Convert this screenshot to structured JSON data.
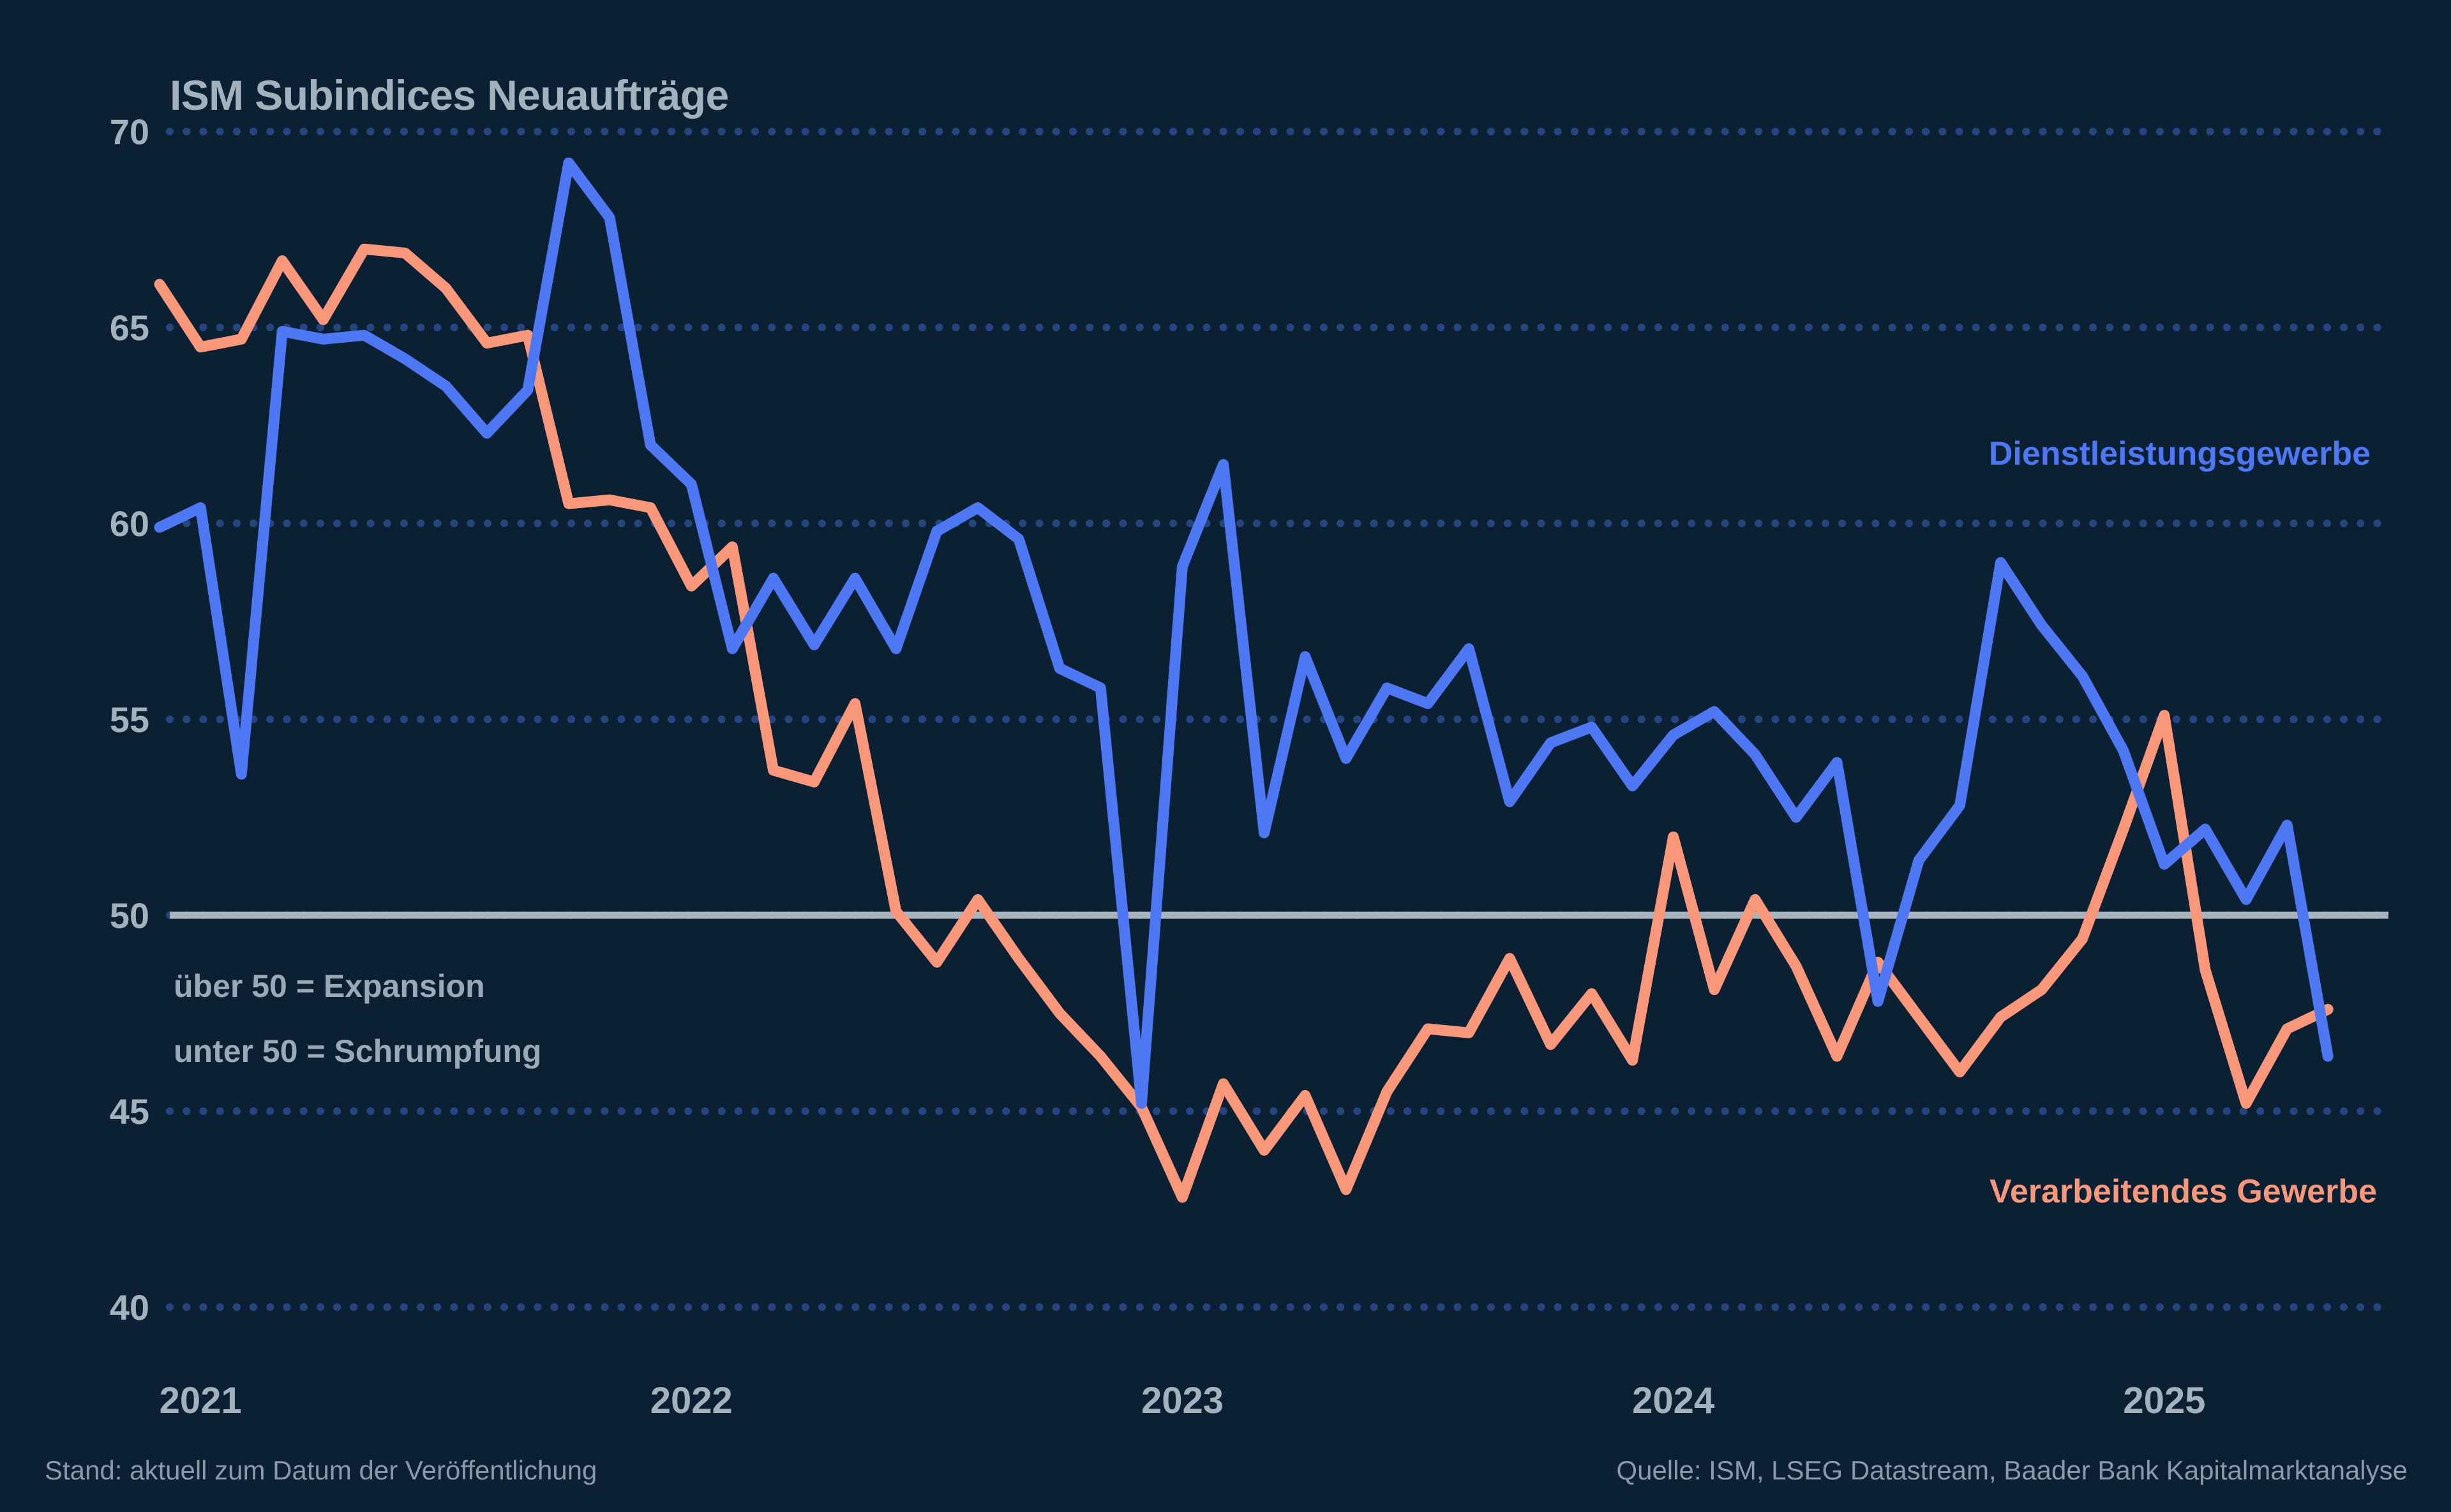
{
  "page": {
    "background": "#0b2033"
  },
  "chart_data": {
    "type": "line",
    "title": "ISM Subindices Neuaufträge",
    "x_interval": "monthly",
    "x_start": "2020-12",
    "x_end": "2025-05",
    "ylim": [
      40,
      70
    ],
    "yticks": [
      70,
      65,
      60,
      55,
      50,
      45,
      40
    ],
    "xticks": [
      {
        "label": "2021",
        "month_index": 1
      },
      {
        "label": "2022",
        "month_index": 13
      },
      {
        "label": "2023",
        "month_index": 25
      },
      {
        "label": "2024",
        "month_index": 37
      },
      {
        "label": "2025",
        "month_index": 49
      }
    ],
    "grid": {
      "style": "dotted",
      "orientation": "horizontal",
      "color": "#24457f"
    },
    "reference_line": {
      "value": 50,
      "color": "#a9b3bd"
    },
    "annotations": [
      "über 50 = Expansion",
      "unter 50 = Schrumpfung"
    ],
    "legend_position": "inline-right",
    "series": [
      {
        "name": "Dienstleistungsgewerbe",
        "color": "#4e77f4",
        "values": [
          59.9,
          60.4,
          53.6,
          64.9,
          64.7,
          64.8,
          64.2,
          63.5,
          62.3,
          63.4,
          69.2,
          67.8,
          62.0,
          61.0,
          56.8,
          58.6,
          56.9,
          58.6,
          56.8,
          59.8,
          60.4,
          59.6,
          56.3,
          55.8,
          45.2,
          58.9,
          61.5,
          52.1,
          56.6,
          54.0,
          55.8,
          55.4,
          56.8,
          52.9,
          54.4,
          54.8,
          53.3,
          54.6,
          55.2,
          54.1,
          52.5,
          53.9,
          47.8,
          51.4,
          52.8,
          59.0,
          57.4,
          56.1,
          54.2,
          51.3,
          52.2,
          50.4,
          52.3,
          46.4
        ]
      },
      {
        "name": "Verarbeitendes Gewerbe",
        "color": "#f9977a",
        "values": [
          66.1,
          64.5,
          64.7,
          66.7,
          65.2,
          67.0,
          66.9,
          66.0,
          64.6,
          64.8,
          60.5,
          60.6,
          60.4,
          58.4,
          59.4,
          53.7,
          53.4,
          55.4,
          50.1,
          48.8,
          50.4,
          48.9,
          47.5,
          46.4,
          45.1,
          42.8,
          45.7,
          44.0,
          45.4,
          43.0,
          45.5,
          47.1,
          47.0,
          48.9,
          46.7,
          48.0,
          46.3,
          52.0,
          48.1,
          50.4,
          48.7,
          46.4,
          48.8,
          47.4,
          46.0,
          47.4,
          48.1,
          49.4,
          52.2,
          55.1,
          48.6,
          45.2,
          47.1,
          47.6
        ]
      }
    ],
    "footer_left": "Stand: aktuell zum Datum der Veröffentlichung",
    "footer_right": "Quelle: ISM, LSEG Datastream, Baader Bank Kapitalmarktanalyse"
  },
  "colors": {
    "title_text": "#a2b1bc",
    "axis_text": "#a2b1bc",
    "annotation_text": "#9aa9b5",
    "footer_text": "#8a9aa8",
    "grid_dots": "#24457f",
    "reference_line": "#a9b3bd"
  }
}
